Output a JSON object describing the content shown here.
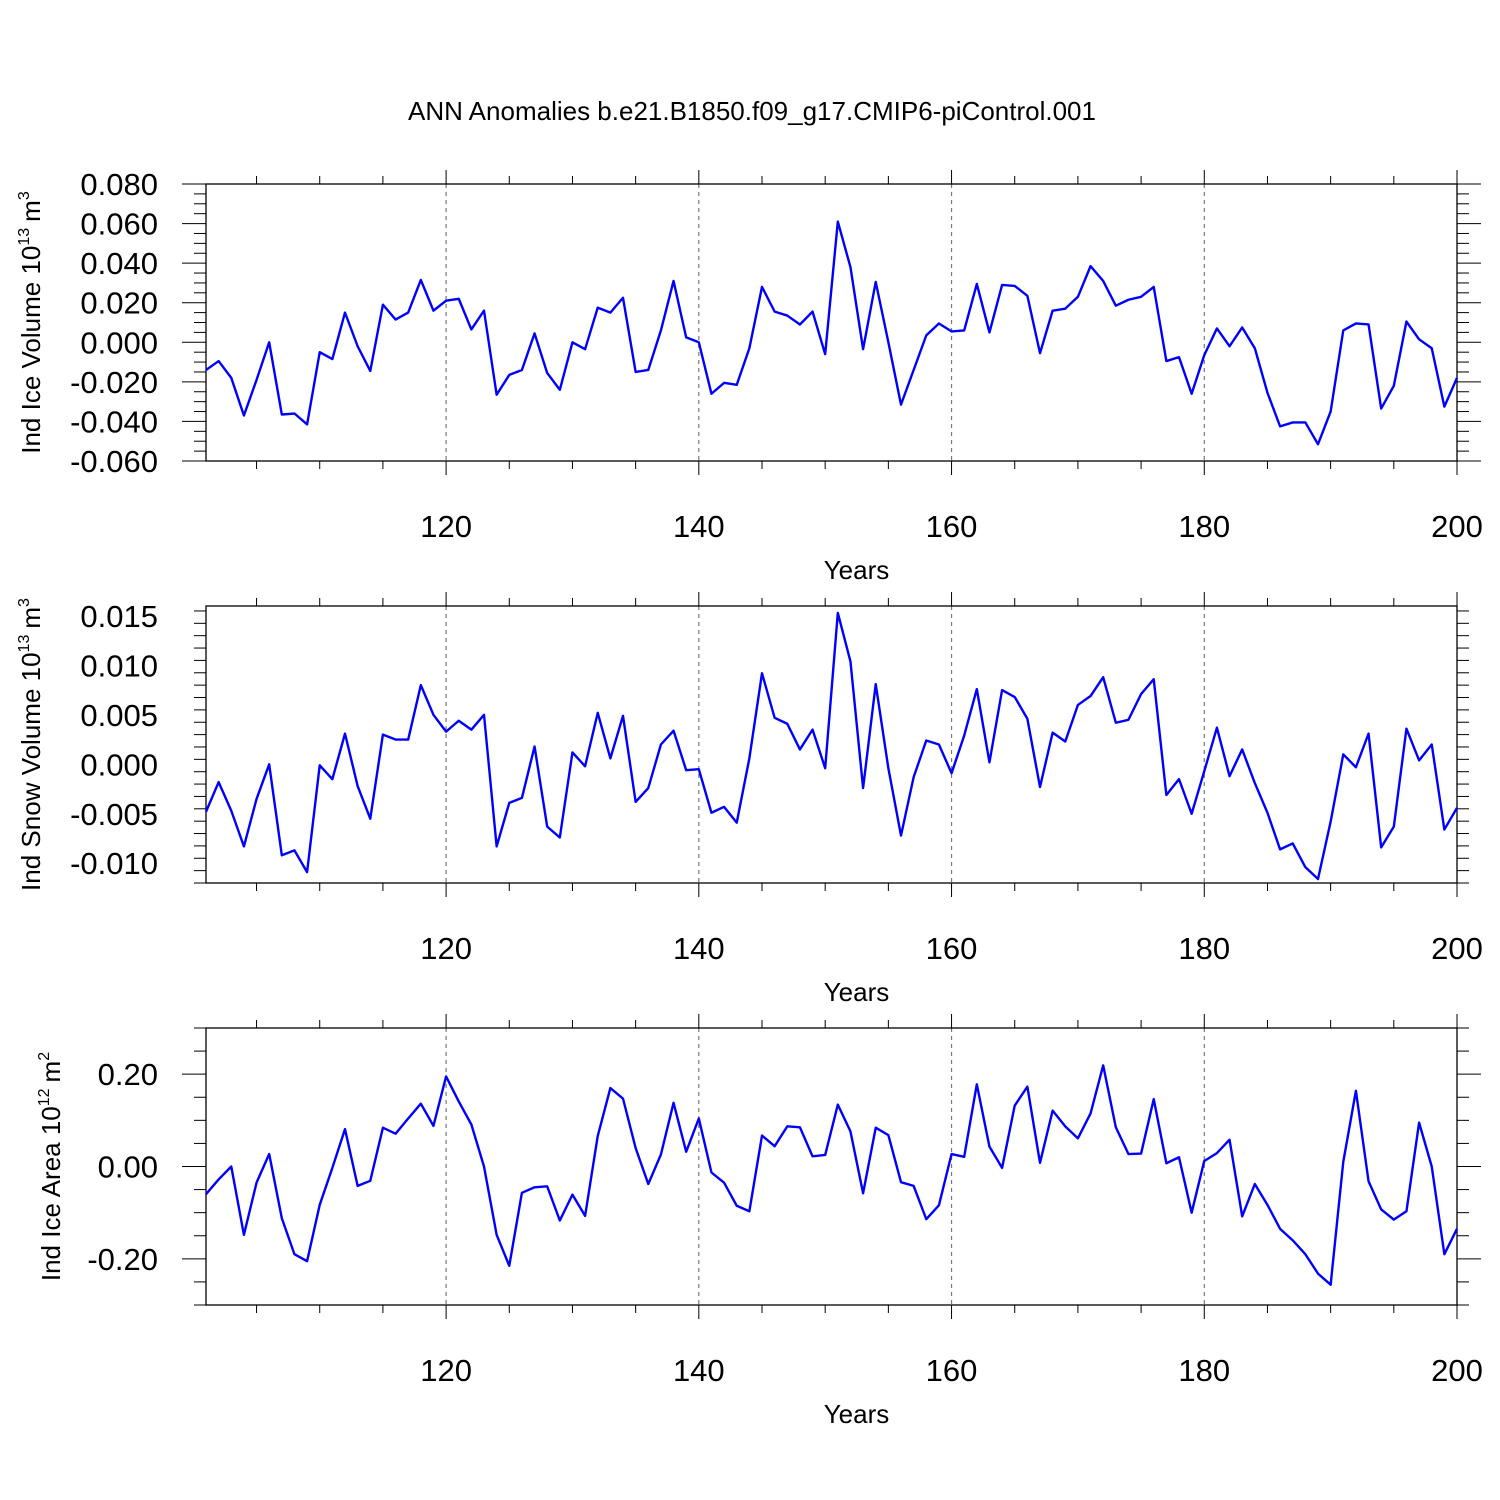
{
  "figure_title": "ANN Anomalies b.e21.B1850.f09_g17.CMIP6-piControl.001",
  "colors": {
    "line": "#0000ff",
    "axis": "#000000",
    "grid": "#777777"
  },
  "chart_data": [
    {
      "type": "line",
      "title": "ANN Anomalies b.e21.B1850.f09_g17.CMIP6-piControl.001",
      "xlabel": "Years",
      "ylabel_base": "Ind Ice Volume 10",
      "ylabel_exp": "13",
      "ylabel_unit": "m",
      "ylabel_unit_exp": "3",
      "xlim": [
        101,
        200
      ],
      "ylim": [
        -0.06,
        0.08
      ],
      "xticks": [
        120,
        140,
        160,
        180,
        200
      ],
      "xtick_labels": [
        "120",
        "140",
        "160",
        "180",
        "200"
      ],
      "yticks": [
        -0.06,
        -0.04,
        -0.02,
        0.0,
        0.02,
        0.04,
        0.06,
        0.08
      ],
      "ytick_labels": [
        "-0.060",
        "-0.040",
        "-0.020",
        "0.000",
        "0.020",
        "0.040",
        "0.060",
        "0.080"
      ],
      "grid_x": [
        120,
        140,
        160,
        180
      ],
      "x_start": 101,
      "values": [
        -0.014,
        -0.0095,
        -0.018,
        -0.037,
        -0.019,
        0.0,
        -0.0365,
        -0.036,
        -0.0415,
        -0.005,
        -0.0085,
        0.015,
        -0.002,
        -0.0145,
        0.019,
        0.0115,
        0.015,
        0.0315,
        0.016,
        0.021,
        0.022,
        0.0065,
        0.016,
        -0.0265,
        -0.0165,
        -0.014,
        0.0045,
        -0.0155,
        -0.024,
        0.0,
        -0.0035,
        0.0175,
        0.015,
        0.0225,
        -0.015,
        -0.014,
        0.006,
        0.031,
        0.0025,
        0.0,
        -0.026,
        -0.0205,
        -0.0215,
        -0.003,
        0.028,
        0.0155,
        0.0135,
        0.009,
        0.0155,
        -0.006,
        0.061,
        0.038,
        -0.0035,
        0.0305,
        0.0,
        -0.0315,
        -0.014,
        0.0035,
        0.0095,
        0.0055,
        0.006,
        0.0295,
        0.005,
        0.029,
        0.0285,
        0.0235,
        -0.0055,
        0.016,
        0.017,
        0.023,
        0.0385,
        0.031,
        0.0185,
        0.0215,
        0.023,
        0.028,
        -0.0095,
        -0.0075,
        -0.026,
        -0.0065,
        0.007,
        -0.002,
        0.0075,
        -0.003,
        -0.0255,
        -0.0425,
        -0.0405,
        -0.0405,
        -0.0515,
        -0.035,
        0.006,
        0.0095,
        0.009,
        -0.0335,
        -0.022,
        0.0105,
        0.0015,
        -0.003,
        -0.0325,
        -0.018
      ]
    },
    {
      "type": "line",
      "xlabel": "Years",
      "ylabel_base": "Ind Snow Volume 10",
      "ylabel_exp": "13",
      "ylabel_unit": "m",
      "ylabel_unit_exp": "3",
      "xlim": [
        101,
        200
      ],
      "ylim": [
        -0.012,
        0.016
      ],
      "xticks": [
        120,
        140,
        160,
        180,
        200
      ],
      "xtick_labels": [
        "120",
        "140",
        "160",
        "180",
        "200"
      ],
      "yticks": [
        -0.01,
        -0.005,
        0.0,
        0.005,
        0.01,
        0.015
      ],
      "ytick_labels": [
        "-0.010",
        "-0.005",
        "0.000",
        "0.005",
        "0.010",
        "0.015"
      ],
      "grid_x": [
        120,
        140,
        160,
        180
      ],
      "x_start": 101,
      "values": [
        -0.0048,
        -0.0018,
        -0.0047,
        -0.0083,
        -0.0035,
        0.0,
        -0.0092,
        -0.0087,
        -0.0109,
        -0.0001,
        -0.0015,
        0.0031,
        -0.0022,
        -0.0055,
        0.003,
        0.0025,
        0.0025,
        0.008,
        0.005,
        0.0033,
        0.0044,
        0.0035,
        0.005,
        -0.0083,
        -0.0039,
        -0.0034,
        0.0018,
        -0.0063,
        -0.0074,
        0.0012,
        -0.0002,
        0.0052,
        0.0006,
        0.0049,
        -0.0038,
        -0.0024,
        0.002,
        0.0034,
        -0.0006,
        -0.0005,
        -0.0049,
        -0.0043,
        -0.0059,
        0.0006,
        0.0092,
        0.0047,
        0.0041,
        0.0015,
        0.0035,
        -0.0004,
        0.0153,
        0.0104,
        -0.0024,
        0.0081,
        -0.0004,
        -0.0072,
        -0.0013,
        0.0024,
        0.002,
        -0.0009,
        0.0029,
        0.0076,
        0.0002,
        0.0075,
        0.0068,
        0.0046,
        -0.0023,
        0.0032,
        0.0023,
        0.006,
        0.0069,
        0.0088,
        0.0042,
        0.0045,
        0.0071,
        0.0086,
        -0.0031,
        -0.0015,
        -0.005,
        -0.0007,
        0.0037,
        -0.0012,
        0.0015,
        -0.0019,
        -0.0049,
        -0.0086,
        -0.008,
        -0.0104,
        -0.0116,
        -0.0058,
        0.001,
        -0.0003,
        0.0031,
        -0.0084,
        -0.0063,
        0.0036,
        0.0004,
        0.002,
        -0.0066,
        -0.0044
      ]
    },
    {
      "type": "line",
      "xlabel": "Years",
      "ylabel_base": "Ind Ice Area 10",
      "ylabel_exp": "12",
      "ylabel_unit": "m",
      "ylabel_unit_exp": "2",
      "xlim": [
        101,
        200
      ],
      "ylim": [
        -0.3,
        0.3
      ],
      "xticks": [
        120,
        140,
        160,
        180,
        200
      ],
      "xtick_labels": [
        "120",
        "140",
        "160",
        "180",
        "200"
      ],
      "yticks": [
        -0.2,
        0.0,
        0.2
      ],
      "ytick_labels": [
        "-0.20",
        "0.00",
        "0.20"
      ],
      "grid_x": [
        120,
        140,
        160,
        180
      ],
      "x_start": 101,
      "values": [
        -0.06,
        -0.028,
        0.0,
        -0.148,
        -0.035,
        0.027,
        -0.112,
        -0.19,
        -0.205,
        -0.083,
        -0.003,
        0.081,
        -0.042,
        -0.031,
        0.084,
        0.071,
        0.104,
        0.136,
        0.088,
        0.195,
        0.141,
        0.091,
        0.0,
        -0.148,
        -0.215,
        -0.057,
        -0.045,
        -0.043,
        -0.117,
        -0.061,
        -0.107,
        0.066,
        0.17,
        0.147,
        0.04,
        -0.038,
        0.026,
        0.138,
        0.032,
        0.104,
        -0.013,
        -0.035,
        -0.085,
        -0.097,
        0.067,
        0.044,
        0.087,
        0.085,
        0.022,
        0.025,
        0.134,
        0.076,
        -0.058,
        0.084,
        0.068,
        -0.034,
        -0.042,
        -0.114,
        -0.084,
        0.027,
        0.021,
        0.178,
        0.043,
        -0.003,
        0.132,
        0.173,
        0.008,
        0.121,
        0.087,
        0.061,
        0.115,
        0.219,
        0.085,
        0.027,
        0.028,
        0.146,
        0.007,
        0.02,
        -0.1,
        0.012,
        0.029,
        0.058,
        -0.108,
        -0.038,
        -0.083,
        -0.135,
        -0.16,
        -0.19,
        -0.232,
        -0.256,
        0.01,
        0.164,
        -0.032,
        -0.093,
        -0.115,
        -0.097,
        0.095,
        0.0,
        -0.19,
        -0.135
      ]
    }
  ]
}
